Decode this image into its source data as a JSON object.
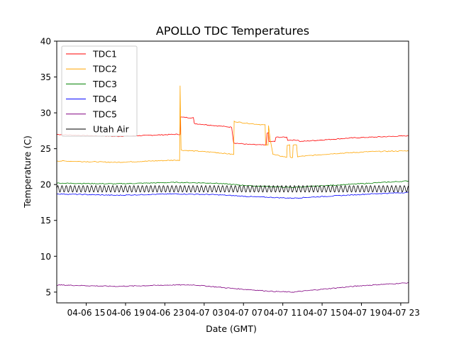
{
  "chart_data": {
    "type": "line",
    "title": "APOLLO TDC Temperatures",
    "xlabel": "Date (GMT)",
    "ylabel": "Temperature (C)",
    "x_unit": "hours since 2024-04-06 12:00 GMT",
    "xlim": [
      0,
      35.8
    ],
    "ylim": [
      3.5,
      40
    ],
    "y_ticks": [
      5,
      10,
      15,
      20,
      25,
      30,
      35,
      40
    ],
    "x_ticks": [
      {
        "value": 3,
        "label": "04-06 15"
      },
      {
        "value": 7,
        "label": "04-06 19"
      },
      {
        "value": 11,
        "label": "04-06 23"
      },
      {
        "value": 15,
        "label": "04-07 03"
      },
      {
        "value": 19,
        "label": "04-07 07"
      },
      {
        "value": 23,
        "label": "04-07 11"
      },
      {
        "value": 27,
        "label": "04-07 15"
      },
      {
        "value": 31,
        "label": "04-07 19"
      },
      {
        "value": 35,
        "label": "04-07 23"
      }
    ],
    "legend_position": "top-left",
    "series": [
      {
        "name": "TDC1",
        "color": "#ff0000",
        "points": [
          [
            0,
            27.0
          ],
          [
            6,
            26.7
          ],
          [
            12,
            27.0
          ],
          [
            12.55,
            27.0
          ],
          [
            12.6,
            29.4
          ],
          [
            13.9,
            29.3
          ],
          [
            14.0,
            28.5
          ],
          [
            17.8,
            28.0
          ],
          [
            18.0,
            25.8
          ],
          [
            19.5,
            25.6
          ],
          [
            21.3,
            25.5
          ],
          [
            21.4,
            27.2
          ],
          [
            21.55,
            27.2
          ],
          [
            21.6,
            26.0
          ],
          [
            22.2,
            26.0
          ],
          [
            22.3,
            26.6
          ],
          [
            23.4,
            26.6
          ],
          [
            23.5,
            26.2
          ],
          [
            24.6,
            26.2
          ],
          [
            24.7,
            26.0
          ],
          [
            30,
            26.5
          ],
          [
            35.8,
            26.8
          ]
        ]
      },
      {
        "name": "TDC2",
        "color": "#ffa500",
        "points": [
          [
            0,
            23.3
          ],
          [
            6,
            23.1
          ],
          [
            12,
            23.4
          ],
          [
            12.5,
            23.4
          ],
          [
            12.55,
            33.8
          ],
          [
            12.65,
            24.8
          ],
          [
            16,
            24.5
          ],
          [
            18.0,
            24.2
          ],
          [
            18.05,
            28.8
          ],
          [
            19,
            28.6
          ],
          [
            21.2,
            28.3
          ],
          [
            21.25,
            25.5
          ],
          [
            21.5,
            25.5
          ],
          [
            21.55,
            28.2
          ],
          [
            21.7,
            26.5
          ],
          [
            22.0,
            24.2
          ],
          [
            23.4,
            23.8
          ],
          [
            23.45,
            25.5
          ],
          [
            23.7,
            25.5
          ],
          [
            23.75,
            23.8
          ],
          [
            24.0,
            23.8
          ],
          [
            24.05,
            25.5
          ],
          [
            24.4,
            25.5
          ],
          [
            24.5,
            23.9
          ],
          [
            28,
            24.3
          ],
          [
            32,
            24.6
          ],
          [
            35.8,
            24.7
          ]
        ]
      },
      {
        "name": "TDC3",
        "color": "#008000",
        "points": [
          [
            0,
            20.2
          ],
          [
            6,
            20.1
          ],
          [
            12,
            20.3
          ],
          [
            16,
            20.2
          ],
          [
            20,
            19.8
          ],
          [
            24,
            19.6
          ],
          [
            28,
            19.9
          ],
          [
            32,
            20.2
          ],
          [
            35.8,
            20.5
          ]
        ]
      },
      {
        "name": "TDC4",
        "color": "#0000ff",
        "points": [
          [
            0,
            18.7
          ],
          [
            6,
            18.5
          ],
          [
            12,
            18.7
          ],
          [
            16,
            18.6
          ],
          [
            20,
            18.3
          ],
          [
            24,
            18.1
          ],
          [
            28,
            18.4
          ],
          [
            32,
            18.7
          ],
          [
            35.8,
            18.9
          ]
        ]
      },
      {
        "name": "TDC5",
        "color": "#800080",
        "points": [
          [
            0,
            6.0
          ],
          [
            6,
            5.8
          ],
          [
            12,
            6.0
          ],
          [
            14,
            6.0
          ],
          [
            18,
            5.5
          ],
          [
            22,
            5.1
          ],
          [
            24,
            5.0
          ],
          [
            27,
            5.4
          ],
          [
            31,
            5.9
          ],
          [
            35.8,
            6.3
          ]
        ]
      },
      {
        "name": "Utah Air",
        "color": "#000000",
        "oscillation": {
          "mean": 19.4,
          "amplitude": 0.45,
          "period_hours": 0.43
        }
      }
    ]
  }
}
